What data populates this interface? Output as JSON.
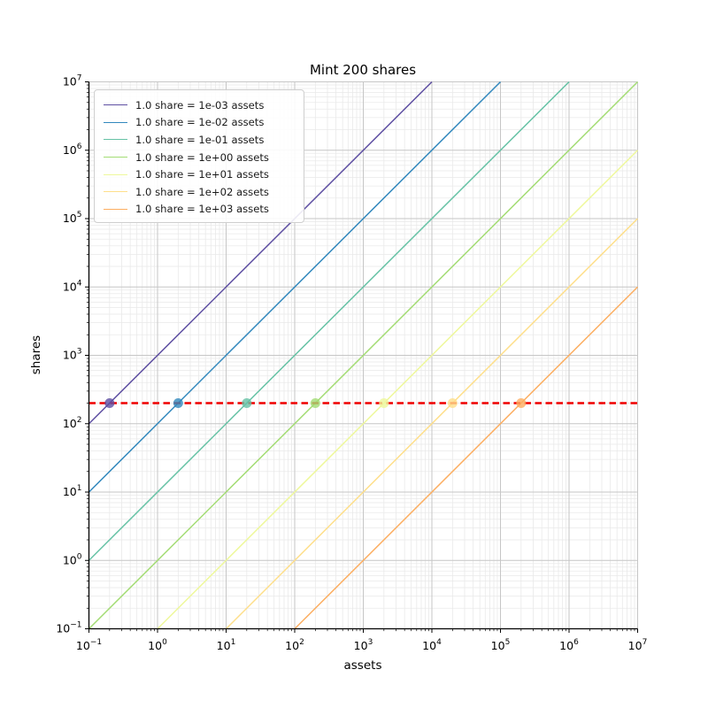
{
  "figure": {
    "title": "Mint 200 shares",
    "xlabel": "assets",
    "ylabel": "shares",
    "background": "#ffffff",
    "text_color": "#1a1a1a"
  },
  "chart_data": {
    "type": "line",
    "title": "Mint 200 shares",
    "xlabel": "assets",
    "ylabel": "shares",
    "x_scale": "log",
    "y_scale": "log",
    "xlim": [
      0.1,
      10000000
    ],
    "ylim": [
      0.1,
      10000000
    ],
    "x_tick_exponents": [
      -1,
      0,
      1,
      2,
      3,
      4,
      5,
      6,
      7
    ],
    "y_tick_exponents": [
      -1,
      0,
      1,
      2,
      3,
      4,
      5,
      6,
      7
    ],
    "grid": {
      "major": true,
      "minor": true,
      "major_color": "#c6c6c6",
      "minor_color": "#e9e9e9"
    },
    "legend_position": "upper-left",
    "target_shares": 200,
    "target_line": {
      "y": 200,
      "color": "#ef0000",
      "style": "dashed"
    },
    "series": [
      {
        "label": "1.0 share = 1e-03 assets",
        "assets_per_share": 0.001,
        "color": "#5e4fa2",
        "intersection": {
          "assets": 0.2,
          "shares": 200
        }
      },
      {
        "label": "1.0 share = 1e-02 assets",
        "assets_per_share": 0.01,
        "color": "#3288bd",
        "intersection": {
          "assets": 2,
          "shares": 200
        }
      },
      {
        "label": "1.0 share = 1e-01 assets",
        "assets_per_share": 0.1,
        "color": "#66c2a5",
        "intersection": {
          "assets": 20,
          "shares": 200
        }
      },
      {
        "label": "1.0 share = 1e+00 assets",
        "assets_per_share": 1,
        "color": "#a3dc74",
        "intersection": {
          "assets": 200,
          "shares": 200
        }
      },
      {
        "label": "1.0 share = 1e+01 assets",
        "assets_per_share": 10,
        "color": "#eef89b",
        "intersection": {
          "assets": 2000,
          "shares": 200
        }
      },
      {
        "label": "1.0 share = 1e+02 assets",
        "assets_per_share": 100,
        "color": "#fedf8b",
        "intersection": {
          "assets": 20000,
          "shares": 200
        }
      },
      {
        "label": "1.0 share = 1e+03 assets",
        "assets_per_share": 1000,
        "color": "#fcae61",
        "intersection": {
          "assets": 200000,
          "shares": 200
        }
      }
    ]
  }
}
